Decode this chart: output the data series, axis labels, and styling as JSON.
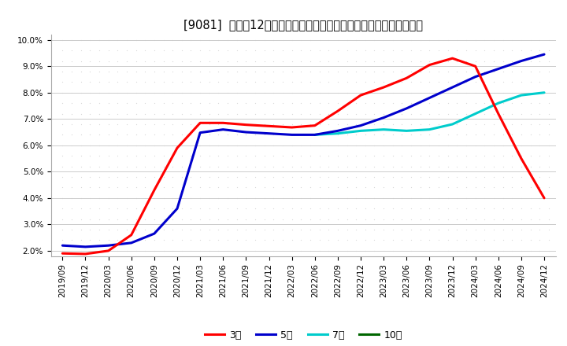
{
  "title": "[9081]  売上高12か月移動合計の対前年同期増減率の標準偏差の推移",
  "ylim": [
    0.018,
    0.102
  ],
  "yticks": [
    0.02,
    0.03,
    0.04,
    0.05,
    0.06,
    0.07,
    0.08,
    0.09,
    0.1
  ],
  "ytick_labels": [
    "2.0%",
    "3.0%",
    "4.0%",
    "5.0%",
    "6.0%",
    "7.0%",
    "8.0%",
    "9.0%",
    "10.0%"
  ],
  "x_labels": [
    "2019/09",
    "2019/12",
    "2020/03",
    "2020/06",
    "2020/09",
    "2020/12",
    "2021/03",
    "2021/06",
    "2021/09",
    "2021/12",
    "2022/03",
    "2022/06",
    "2022/09",
    "2022/12",
    "2023/03",
    "2023/06",
    "2023/09",
    "2023/12",
    "2024/03",
    "2024/06",
    "2024/09",
    "2024/12"
  ],
  "series": {
    "3年": {
      "color": "#ff0000",
      "data_x": [
        0,
        1,
        2,
        3,
        4,
        5,
        6,
        7,
        8,
        9,
        10,
        11,
        12,
        13,
        14,
        15,
        16,
        17,
        18,
        19,
        20,
        21
      ],
      "data_y": [
        0.019,
        0.0188,
        0.02,
        0.026,
        0.043,
        0.059,
        0.0685,
        0.0685,
        0.0678,
        0.0673,
        0.0668,
        0.0675,
        0.073,
        0.079,
        0.082,
        0.0855,
        0.0905,
        0.093,
        0.09,
        0.072,
        0.055,
        0.04
      ]
    },
    "5年": {
      "color": "#0000cc",
      "data_x": [
        0,
        1,
        2,
        3,
        4,
        5,
        6,
        7,
        8,
        9,
        10,
        11,
        12,
        13,
        14,
        15,
        16,
        17,
        18,
        19,
        20,
        21
      ],
      "data_y": [
        0.022,
        0.0215,
        0.022,
        0.023,
        0.0265,
        0.036,
        0.0648,
        0.066,
        0.065,
        0.0645,
        0.064,
        0.064,
        0.0655,
        0.0675,
        0.0705,
        0.074,
        0.078,
        0.082,
        0.086,
        0.089,
        0.092,
        0.0945
      ]
    },
    "7年": {
      "color": "#00cccc",
      "data_x": [
        11,
        12,
        13,
        14,
        15,
        16,
        17,
        18,
        19,
        20,
        21
      ],
      "data_y": [
        0.064,
        0.0645,
        0.0655,
        0.066,
        0.0655,
        0.066,
        0.068,
        0.072,
        0.076,
        0.079,
        0.08
      ]
    },
    "10年": {
      "color": "#006600",
      "data_x": [],
      "data_y": []
    }
  },
  "legend_entries": [
    "3年",
    "5年",
    "7年",
    "10年"
  ],
  "legend_colors": [
    "#ff0000",
    "#0000cc",
    "#00cccc",
    "#006600"
  ],
  "dot_color": "#d8d8d8",
  "grid_color": "#cccccc",
  "title_fontsize": 10.5,
  "tick_fontsize": 7.5,
  "legend_fontsize": 9
}
